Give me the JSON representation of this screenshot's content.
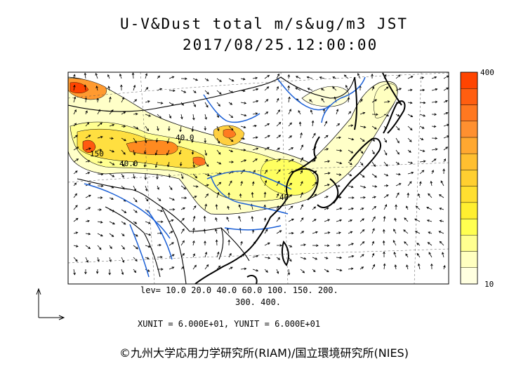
{
  "title": {
    "line1": "U-V&Dust total m/s&ug/m3 JST",
    "line2": "2017/08/25.12:00:00"
  },
  "legend": {
    "levels_line1": "lev= 10.0 20.0 40.0 60.0 100. 150. 200.",
    "levels_line2": "300. 400.",
    "top_label": "400",
    "bottom_label": "10",
    "colors": [
      "#ffffe0",
      "#ffffc0",
      "#ffff90",
      "#ffff50",
      "#ffef30",
      "#ffdf30",
      "#ffcf30",
      "#ffbf30",
      "#ffa830",
      "#ff9030",
      "#ff7820",
      "#ff5e10",
      "#ff4400"
    ]
  },
  "units": "XUNIT = 6.000E+01, YUNIT = 6.000E+01",
  "contour_labels": [
    "40.0",
    "150",
    "40.0",
    "40"
  ],
  "credit": "©九州大学応用力学研究所(RIAM)/国立環境研究所(NIES)",
  "colors": {
    "coast": "#000000",
    "rivers": "#1a5fd6",
    "frame": "#000000"
  }
}
